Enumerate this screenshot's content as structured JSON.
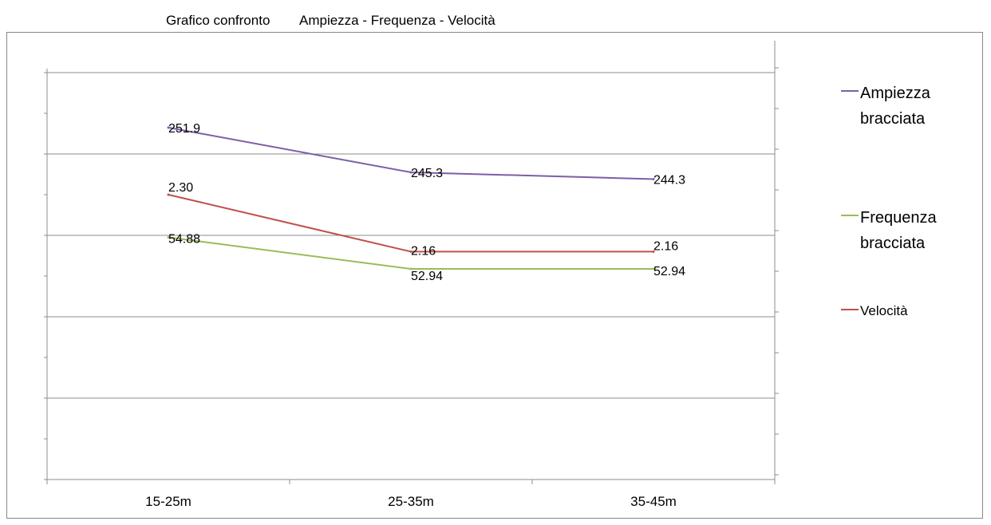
{
  "chart_data": {
    "type": "line",
    "title_parts": [
      "Grafico confronto",
      "Ampiezza - Frequenza - Velocità"
    ],
    "xlabel": "",
    "ylabel": "",
    "categories": [
      "15-25m",
      "25-35m",
      "35-45m"
    ],
    "grid": true,
    "legend_position": "right",
    "series": [
      {
        "name": "Ampiezza bracciata",
        "values": [
          251.9,
          245.3,
          244.3
        ],
        "labels": [
          "251.9",
          "245.3",
          "244.3"
        ],
        "color": "#7b5fa8"
      },
      {
        "name": "Frequenza bracciata",
        "values": [
          54.88,
          52.94,
          52.94
        ],
        "labels": [
          "54.88",
          "52.94",
          "52.94"
        ],
        "color": "#9bbb59"
      },
      {
        "name": "Velocità",
        "values": [
          2.3,
          2.16,
          2.16
        ],
        "labels": [
          "2.30",
          "2.16",
          "2.16"
        ],
        "color": "#c0504d"
      }
    ]
  }
}
